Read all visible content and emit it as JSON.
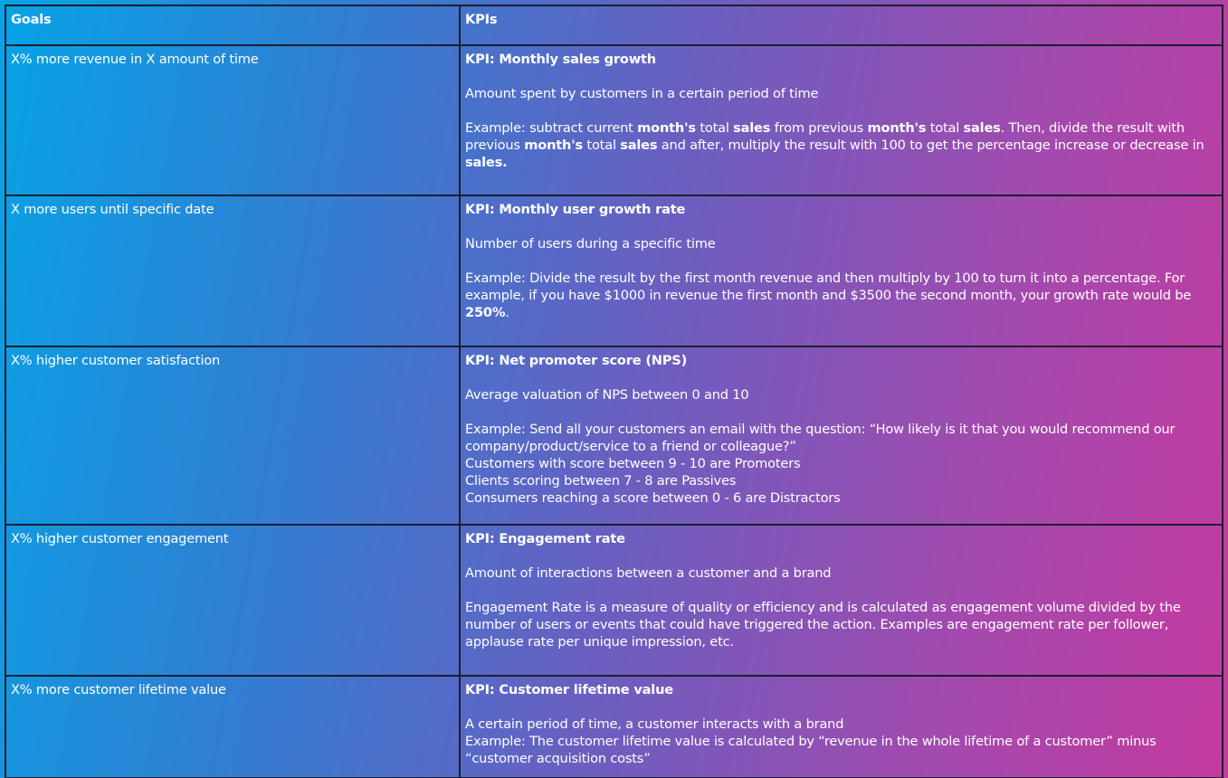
{
  "table": {
    "headers": {
      "goals": "Goals",
      "kpis": "KPIs"
    },
    "rows": [
      {
        "goal": "X% more revenue in X amount of time",
        "kpi_title": "KPI: Monthly sales growth",
        "kpi_desc": "Amount spent by customers in a certain period of time",
        "example_parts": [
          "Example: subtract current ",
          "month's",
          " total ",
          "sales",
          " from previous ",
          "month's",
          " total ",
          "sales",
          ". Then, divide the result with previous ",
          "month's",
          " total ",
          "sales",
          " and after, multiply the result with 100 to get the percentage increase or decrease in ",
          "sales."
        ]
      },
      {
        "goal": "X more users until specific date",
        "kpi_title": "KPI: Monthly user growth rate",
        "kpi_desc": "Number of users during a specific time",
        "example_parts": [
          "Example: Divide the result by the first month revenue and then multiply by 100 to turn it into a percentage. For example, if you have $1000 in revenue the first month and $3500 the second month, your growth rate would be ",
          "250%",
          "."
        ]
      },
      {
        "goal": "X% higher customer satisfaction",
        "kpi_title": "KPI: Net promoter score (NPS)",
        "kpi_desc": "Average valuation of NPS between 0 and 10",
        "example_lines": [
          "Example: Send all your customers an email with the question: “How likely is it that you would recommend our company/product/service to a friend or colleague?”",
          "Customers with score between 9 - 10 are Promoters",
          "Clients scoring between 7 - 8 are Passives",
          "Consumers reaching a score between 0 - 6 are Distractors"
        ]
      },
      {
        "goal": "X% higher customer engagement",
        "kpi_title": "KPI: Engagement rate",
        "kpi_desc": "Amount of interactions between a customer and a brand",
        "example": "Engagement Rate is a measure of quality or efficiency and is calculated as engagement volume divided by the number of users or events that could have triggered the action. Examples are engagement rate per follower, applause rate per unique impression, etc."
      },
      {
        "goal": "X% more customer lifetime value",
        "kpi_title": "KPI: Customer lifetime value",
        "kpi_desc": "A certain period of time, a customer interacts with a brand",
        "example": "Example: The customer lifetime value is calculated by “revenue in the whole lifetime of a customer” minus “customer acquisition costs”"
      }
    ]
  }
}
